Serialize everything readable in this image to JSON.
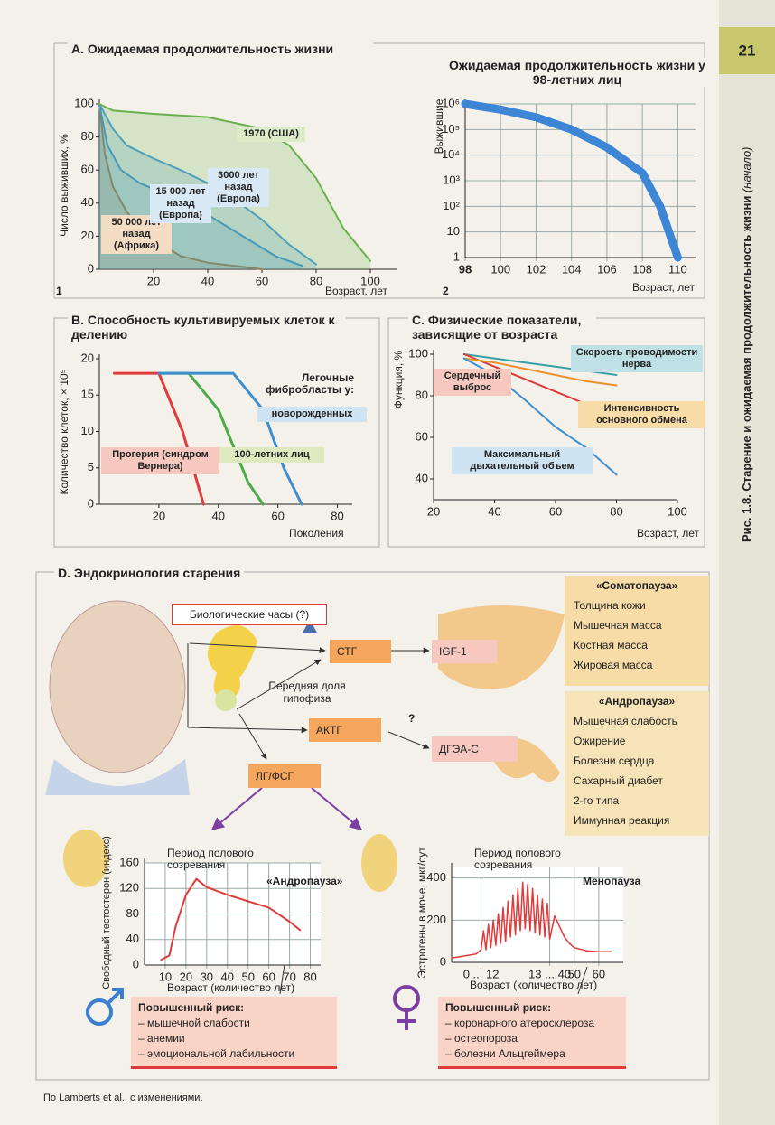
{
  "page_number": "21",
  "side_title": "Рис. 1.8.   Старение и ожидаемая продолжительность жизни",
  "side_title_note": "(начало)",
  "footer": "По Lamberts et al., с изменениями.",
  "chart_data": [
    {
      "type": "line",
      "title": "A. Ожидаемая продолжительность жизни",
      "panel": "1",
      "y_label": "Число выживших, %",
      "x_label": "Возраст, лет",
      "xlim": [
        0,
        110
      ],
      "ylim": [
        0,
        100
      ],
      "xticks": [
        20,
        40,
        60,
        80,
        100
      ],
      "yticks": [
        0,
        20,
        40,
        60,
        80,
        100
      ],
      "grid": false,
      "area": true,
      "series": [
        {
          "name": "50 000 лет назад (Африка)",
          "color": "#b5703a",
          "x": [
            0,
            2,
            5,
            10,
            15,
            20,
            30,
            40,
            50,
            60
          ],
          "values": [
            100,
            70,
            50,
            35,
            25,
            18,
            8,
            4,
            2,
            0
          ]
        },
        {
          "name": "15 000 лет назад (Европа)",
          "color": "#3b8fd0",
          "x": [
            0,
            3,
            8,
            15,
            25,
            35,
            45,
            55,
            65,
            75
          ],
          "values": [
            100,
            75,
            60,
            52,
            45,
            38,
            28,
            18,
            8,
            2
          ]
        },
        {
          "name": "3000 лет назад (Европа)",
          "color": "#4a9bd8",
          "x": [
            0,
            5,
            10,
            20,
            30,
            40,
            50,
            60,
            70,
            80
          ],
          "values": [
            100,
            85,
            75,
            67,
            60,
            52,
            42,
            30,
            15,
            3
          ]
        },
        {
          "name": "1970 (США)",
          "color": "#6ab04c",
          "x": [
            0,
            5,
            20,
            40,
            60,
            70,
            80,
            90,
            100
          ],
          "values": [
            100,
            96,
            94,
            92,
            85,
            75,
            55,
            25,
            5
          ]
        }
      ]
    },
    {
      "type": "line",
      "title": "Ожидаемая продолжительность жизни у 98-летних лиц",
      "panel": "2",
      "y_label": "Выжившие",
      "x_label": "Возраст, лет",
      "log": true,
      "xlim": [
        98,
        111
      ],
      "ylim": [
        1,
        1000000
      ],
      "xticks": [
        98,
        100,
        102,
        104,
        106,
        108,
        110
      ],
      "yticks": [
        1,
        10,
        {
          "value": 100,
          "label": "10²"
        },
        {
          "value": 1000,
          "label": "10³"
        },
        {
          "value": 10000,
          "label": "10⁴"
        },
        {
          "value": 100000,
          "label": "10⁵"
        },
        {
          "value": 1000000,
          "label": "10⁶"
        }
      ],
      "grid": true,
      "series": [
        {
          "name": null,
          "color": "#3d86d6",
          "x": [
            98,
            100,
            102,
            104,
            106,
            108,
            109,
            110
          ],
          "values": [
            1000000,
            600000,
            300000,
            100000,
            20000,
            2000,
            100,
            1
          ]
        }
      ]
    },
    {
      "type": "line",
      "title": "B. Способность культивируемых клеток к делению",
      "y_label": "Количество клеток, × 10⁵",
      "x_label": "Поколения",
      "annotation": "Легочные фибробласты у:",
      "xlim": [
        0,
        85
      ],
      "ylim": [
        0,
        20
      ],
      "xticks": [
        20,
        40,
        60,
        80
      ],
      "yticks": [
        0,
        5,
        10,
        15,
        20
      ],
      "grid": false,
      "series": [
        {
          "name": "Прогерия (синдром Вернера)",
          "color": "#e03a3a",
          "x": [
            5,
            20,
            28,
            35
          ],
          "values": [
            18,
            18,
            10,
            0
          ]
        },
        {
          "name": "100-летних лиц",
          "color": "#4caa4a",
          "x": [
            20,
            30,
            40,
            50,
            55
          ],
          "values": [
            18,
            18,
            13,
            3,
            0
          ]
        },
        {
          "name": "новорожденных",
          "color": "#3b8fd0",
          "x": [
            20,
            45,
            55,
            62,
            68
          ],
          "values": [
            18,
            18,
            13,
            5,
            0
          ]
        }
      ]
    },
    {
      "type": "line",
      "title": "C. Физические показатели, зависящие от возраста",
      "y_label": "Функция, %",
      "x_label": "Возраст, лет",
      "xlim": [
        20,
        100
      ],
      "ylim": [
        30,
        100
      ],
      "xticks": [
        20,
        40,
        60,
        80,
        100
      ],
      "yticks": [
        40,
        60,
        80,
        100
      ],
      "grid": false,
      "series": [
        {
          "name": "Скорость проводимости нерва",
          "color": "#3aa0a8",
          "x": [
            30,
            40,
            50,
            60,
            70,
            80
          ],
          "values": [
            100,
            98,
            96,
            94,
            92,
            90
          ]
        },
        {
          "name": "Сердечный выброс",
          "color": "#e03a3a",
          "x": [
            30,
            40,
            50,
            60,
            70,
            80
          ],
          "values": [
            100,
            94,
            88,
            82,
            76,
            70
          ]
        },
        {
          "name": "Интенсивность основного обмена",
          "color": "#e8922e",
          "x": [
            30,
            40,
            50,
            60,
            70,
            80
          ],
          "values": [
            98,
            96,
            93,
            90,
            87,
            85
          ]
        },
        {
          "name": "Максимальный дыхательный объем",
          "color": "#3b8fd0",
          "x": [
            30,
            40,
            50,
            60,
            70,
            80
          ],
          "values": [
            98,
            90,
            78,
            65,
            55,
            42
          ]
        }
      ]
    },
    {
      "type": "line",
      "y_label": "Свободный тестостерон (индекс)",
      "x_label": "Возраст (количество лет)",
      "annotation": "Период полового созревания",
      "label": "«Андропауза»",
      "xlim": [
        0,
        85
      ],
      "ylim": [
        0,
        160
      ],
      "xticks": [
        10,
        20,
        30,
        40,
        50,
        60,
        70,
        80
      ],
      "yticks": [
        0,
        40,
        80,
        120,
        160
      ],
      "grid": true,
      "series": [
        {
          "name": null,
          "color": "#e03a3a",
          "x": [
            8,
            12,
            15,
            20,
            25,
            30,
            40,
            50,
            60,
            70,
            75
          ],
          "values": [
            8,
            15,
            60,
            110,
            135,
            122,
            110,
            100,
            90,
            68,
            55
          ]
        }
      ]
    },
    {
      "type": "line",
      "y_label": "Эстрогены в моче, мкг/сут",
      "x_label": "Возраст (количество лет)",
      "annotation": "Период полового созревания",
      "label": "Менопауза",
      "xlim": [
        0,
        70
      ],
      "ylim": [
        0,
        450
      ],
      "yticks": [
        0,
        200,
        400
      ],
      "xticks": [
        {
          "value": 12,
          "label": "0 ... 12"
        },
        {
          "value": 40,
          "label": "13 ... 40"
        },
        50,
        60
      ],
      "grid": true,
      "series": [
        {
          "name": null,
          "color": "#e03a3a",
          "x": [
            0,
            5,
            10,
            12,
            13,
            14,
            15,
            16,
            17,
            18,
            19,
            20,
            21,
            22,
            23,
            24,
            25,
            26,
            27,
            28,
            29,
            30,
            31,
            32,
            33,
            34,
            35,
            36,
            37,
            38,
            39,
            40,
            42,
            44,
            46,
            48,
            50,
            55,
            60,
            65
          ],
          "values": [
            20,
            30,
            40,
            60,
            150,
            60,
            180,
            70,
            200,
            80,
            230,
            90,
            260,
            100,
            290,
            120,
            320,
            130,
            350,
            150,
            380,
            160,
            370,
            150,
            350,
            140,
            320,
            130,
            300,
            120,
            280,
            110,
            220,
            170,
            120,
            90,
            70,
            55,
            50,
            50
          ]
        }
      ]
    }
  ],
  "diagram": {
    "title": "D. Эндокринология старения",
    "bio_clock": "Биологические часы (?)",
    "stg": "СТГ",
    "igf": "IGF-1",
    "pituitary": "Передняя доля гипофиза",
    "actg": "АКТГ",
    "question": "?",
    "dhea": "ДГЭА-С",
    "lh": "ЛГ/ФСГ",
    "somatopause": {
      "title": "«Соматопауза»",
      "items": [
        "Толщина кожи",
        "Мышечная масса",
        "Костная масса",
        "Жировая масса"
      ]
    },
    "andropause": {
      "title": "«Андропауза»",
      "items": [
        "Мышечная слабость",
        "Ожирение",
        "Болезни сердца",
        "Сахарный диабет",
        "2-го типа",
        "Иммунная реакция"
      ]
    },
    "risk_male": {
      "title": "Повышенный риск:",
      "items": [
        "– мышечной слабости",
        "– анемии",
        "– эмоциональной лабильности"
      ]
    },
    "risk_female": {
      "title": "Повышенный риск:",
      "items": [
        "– коронарного атеросклероза",
        "– остеопороза",
        "– болезни Альцгеймера"
      ]
    }
  }
}
